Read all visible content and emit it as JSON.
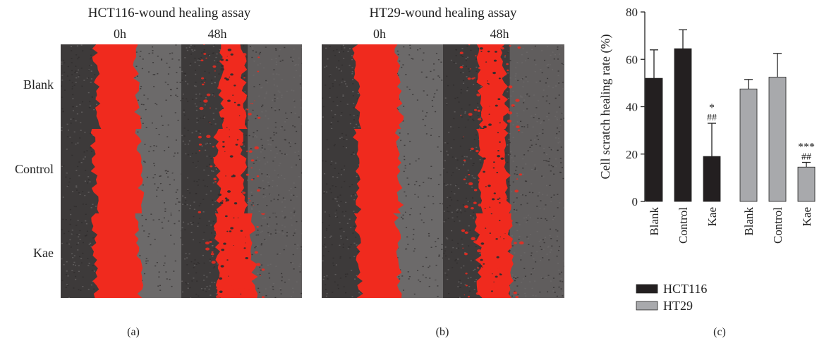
{
  "panel_a": {
    "title": "HCT116-wound healing assay",
    "times": [
      "0h",
      "48h"
    ],
    "rows": [
      "Blank",
      "Control",
      "Kae"
    ],
    "caption": "(a)"
  },
  "panel_b": {
    "title": "HT29-wound healing assay",
    "times": [
      "0h",
      "48h"
    ],
    "caption": "(b)"
  },
  "panel_c": {
    "caption": "(c)"
  },
  "colors": {
    "wound": "#f02a1e",
    "cells_dark": "#3d3a3a",
    "cells_light": "#8c8a8a",
    "hct116": "#231f20",
    "ht29": "#a8a9ac"
  },
  "wound_fractions": {
    "hct116": [
      [
        0.33,
        0.19
      ],
      [
        0.38,
        0.22
      ],
      [
        0.36,
        0.3
      ]
    ],
    "ht29": [
      [
        0.35,
        0.21
      ],
      [
        0.34,
        0.22
      ],
      [
        0.33,
        0.26
      ]
    ]
  },
  "chart_data": {
    "type": "bar",
    "ylabel": "Cell scratch healing rate (%)",
    "ylim": [
      0,
      80
    ],
    "yticks": [
      0,
      20,
      40,
      60,
      80
    ],
    "categories": [
      "Blank",
      "Control",
      "Kae"
    ],
    "series": [
      {
        "name": "HCT116",
        "color": "#231f20",
        "values": [
          52,
          64.5,
          19
        ],
        "errors": [
          12,
          8,
          14
        ],
        "annotations": [
          "",
          "",
          "*\n##"
        ]
      },
      {
        "name": "HT29",
        "color": "#a8a9ac",
        "values": [
          47.5,
          52.5,
          14.5
        ],
        "errors": [
          4,
          10,
          2
        ],
        "annotations": [
          "",
          "",
          "***\n##"
        ]
      }
    ],
    "legend_position": "bottom-left"
  }
}
